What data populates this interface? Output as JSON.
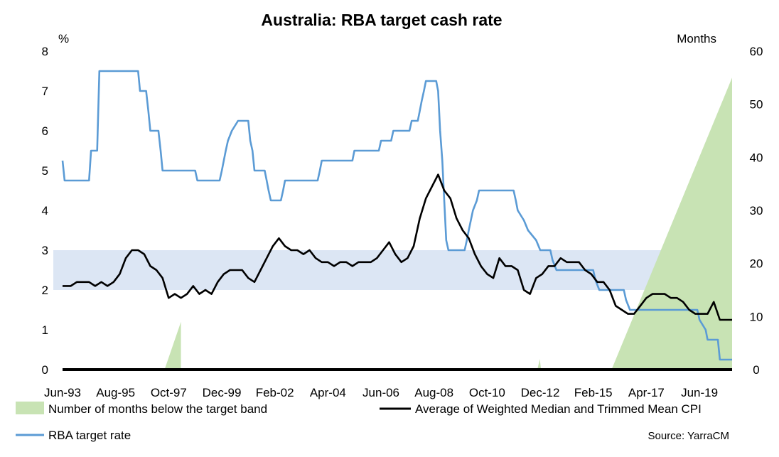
{
  "chart_data": {
    "type": "line",
    "title": "Australia: RBA target cash rate",
    "left_unit": "%",
    "right_unit": "Months",
    "source": "Source: YarraCM",
    "left_axis": {
      "min": 0,
      "max": 8,
      "ticks": [
        "0",
        "1",
        "2",
        "3",
        "4",
        "5",
        "6",
        "7",
        "8"
      ]
    },
    "right_axis": {
      "min": 0,
      "max": 60,
      "ticks": [
        "0",
        "10",
        "20",
        "30",
        "40",
        "50",
        "60"
      ]
    },
    "x_range": [
      1993.417,
      2020.75
    ],
    "x_tick_labels": [
      "Jun-93",
      "Aug-95",
      "Oct-97",
      "Dec-99",
      "Feb-02",
      "Apr-04",
      "Jun-06",
      "Aug-08",
      "Oct-10",
      "Dec-12",
      "Feb-15",
      "Apr-17",
      "Jun-19"
    ],
    "x_tick_values": [
      1993.417,
      1995.583,
      1997.75,
      1999.917,
      2002.083,
      2004.25,
      2006.417,
      2008.583,
      2010.75,
      2012.917,
      2015.083,
      2017.25,
      2019.417
    ],
    "target_band": [
      2,
      3
    ],
    "colors": {
      "band": "#dce6f4",
      "months_fill": "#c8e3b4",
      "rba": "#5b9bd5",
      "cpi": "#000000"
    },
    "legend": {
      "months": "Number of months below the target band",
      "cpi": "Average of Weighted Median and Trimmed Mean CPI",
      "rba": "RBA target rate"
    },
    "series": [
      {
        "name": "RBA target rate",
        "axis": "left",
        "points": [
          [
            1993.417,
            5.25
          ],
          [
            1993.5,
            4.75
          ],
          [
            1994.5,
            4.75
          ],
          [
            1994.58,
            5.5
          ],
          [
            1994.83,
            5.5
          ],
          [
            1994.92,
            7.5
          ],
          [
            1996.5,
            7.5
          ],
          [
            1996.58,
            7.0
          ],
          [
            1996.83,
            7.0
          ],
          [
            1996.92,
            6.5
          ],
          [
            1997.0,
            6.0
          ],
          [
            1997.33,
            6.0
          ],
          [
            1997.42,
            5.5
          ],
          [
            1997.5,
            5.0
          ],
          [
            1998.83,
            5.0
          ],
          [
            1998.92,
            4.75
          ],
          [
            1999.83,
            4.75
          ],
          [
            1999.92,
            5.0
          ],
          [
            2000.08,
            5.5
          ],
          [
            2000.17,
            5.75
          ],
          [
            2000.33,
            6.0
          ],
          [
            2000.58,
            6.25
          ],
          [
            2001.0,
            6.25
          ],
          [
            2001.08,
            5.75
          ],
          [
            2001.17,
            5.5
          ],
          [
            2001.25,
            5.0
          ],
          [
            2001.67,
            5.0
          ],
          [
            2001.75,
            4.75
          ],
          [
            2001.83,
            4.5
          ],
          [
            2001.92,
            4.25
          ],
          [
            2002.33,
            4.25
          ],
          [
            2002.42,
            4.5
          ],
          [
            2002.5,
            4.75
          ],
          [
            2003.83,
            4.75
          ],
          [
            2003.92,
            5.0
          ],
          [
            2004.0,
            5.25
          ],
          [
            2005.25,
            5.25
          ],
          [
            2005.33,
            5.5
          ],
          [
            2006.33,
            5.5
          ],
          [
            2006.42,
            5.75
          ],
          [
            2006.83,
            5.75
          ],
          [
            2006.92,
            6.0
          ],
          [
            2007.58,
            6.0
          ],
          [
            2007.67,
            6.25
          ],
          [
            2007.92,
            6.25
          ],
          [
            2008.0,
            6.5
          ],
          [
            2008.08,
            6.75
          ],
          [
            2008.17,
            7.0
          ],
          [
            2008.25,
            7.25
          ],
          [
            2008.67,
            7.25
          ],
          [
            2008.75,
            7.0
          ],
          [
            2008.83,
            6.0
          ],
          [
            2008.92,
            5.25
          ],
          [
            2009.0,
            4.25
          ],
          [
            2009.08,
            3.25
          ],
          [
            2009.17,
            3.0
          ],
          [
            2009.83,
            3.0
          ],
          [
            2009.92,
            3.25
          ],
          [
            2010.0,
            3.5
          ],
          [
            2010.17,
            4.0
          ],
          [
            2010.33,
            4.25
          ],
          [
            2010.42,
            4.5
          ],
          [
            2011.83,
            4.5
          ],
          [
            2011.92,
            4.25
          ],
          [
            2012.0,
            4.0
          ],
          [
            2012.25,
            3.75
          ],
          [
            2012.42,
            3.5
          ],
          [
            2012.75,
            3.25
          ],
          [
            2012.92,
            3.0
          ],
          [
            2013.33,
            3.0
          ],
          [
            2013.42,
            2.75
          ],
          [
            2013.58,
            2.5
          ],
          [
            2015.08,
            2.5
          ],
          [
            2015.17,
            2.25
          ],
          [
            2015.33,
            2.0
          ],
          [
            2016.33,
            2.0
          ],
          [
            2016.42,
            1.75
          ],
          [
            2016.58,
            1.5
          ],
          [
            2019.33,
            1.5
          ],
          [
            2019.42,
            1.25
          ],
          [
            2019.67,
            1.0
          ],
          [
            2019.75,
            0.75
          ],
          [
            2020.17,
            0.75
          ],
          [
            2020.25,
            0.25
          ],
          [
            2020.75,
            0.25
          ]
        ]
      },
      {
        "name": "Average of Weighted Median and Trimmed Mean CPI",
        "axis": "left",
        "points": [
          [
            1993.417,
            2.1
          ],
          [
            1993.6,
            2.1
          ],
          [
            1993.75,
            2.1
          ],
          [
            1994.0,
            2.2
          ],
          [
            1994.25,
            2.2
          ],
          [
            1994.5,
            2.2
          ],
          [
            1994.75,
            2.1
          ],
          [
            1995.0,
            2.2
          ],
          [
            1995.25,
            2.1
          ],
          [
            1995.5,
            2.2
          ],
          [
            1995.75,
            2.4
          ],
          [
            1996.0,
            2.8
          ],
          [
            1996.25,
            3.0
          ],
          [
            1996.5,
            3.0
          ],
          [
            1996.75,
            2.9
          ],
          [
            1997.0,
            2.6
          ],
          [
            1997.25,
            2.5
          ],
          [
            1997.5,
            2.3
          ],
          [
            1997.75,
            1.8
          ],
          [
            1998.0,
            1.9
          ],
          [
            1998.25,
            1.8
          ],
          [
            1998.5,
            1.9
          ],
          [
            1998.75,
            2.1
          ],
          [
            1999.0,
            1.9
          ],
          [
            1999.25,
            2.0
          ],
          [
            1999.5,
            1.9
          ],
          [
            1999.75,
            2.2
          ],
          [
            2000.0,
            2.4
          ],
          [
            2000.25,
            2.5
          ],
          [
            2000.5,
            2.5
          ],
          [
            2000.75,
            2.5
          ],
          [
            2001.0,
            2.3
          ],
          [
            2001.25,
            2.2
          ],
          [
            2001.5,
            2.5
          ],
          [
            2001.75,
            2.8
          ],
          [
            2002.0,
            3.1
          ],
          [
            2002.25,
            3.3
          ],
          [
            2002.5,
            3.1
          ],
          [
            2002.75,
            3.0
          ],
          [
            2003.0,
            3.0
          ],
          [
            2003.25,
            2.9
          ],
          [
            2003.5,
            3.0
          ],
          [
            2003.75,
            2.8
          ],
          [
            2004.0,
            2.7
          ],
          [
            2004.25,
            2.7
          ],
          [
            2004.5,
            2.6
          ],
          [
            2004.75,
            2.7
          ],
          [
            2005.0,
            2.7
          ],
          [
            2005.25,
            2.6
          ],
          [
            2005.5,
            2.7
          ],
          [
            2005.75,
            2.7
          ],
          [
            2006.0,
            2.7
          ],
          [
            2006.25,
            2.8
          ],
          [
            2006.5,
            3.0
          ],
          [
            2006.75,
            3.2
          ],
          [
            2007.0,
            2.9
          ],
          [
            2007.25,
            2.7
          ],
          [
            2007.5,
            2.8
          ],
          [
            2007.75,
            3.1
          ],
          [
            2008.0,
            3.8
          ],
          [
            2008.25,
            4.3
          ],
          [
            2008.5,
            4.6
          ],
          [
            2008.75,
            4.9
          ],
          [
            2009.0,
            4.5
          ],
          [
            2009.25,
            4.3
          ],
          [
            2009.5,
            3.8
          ],
          [
            2009.75,
            3.5
          ],
          [
            2010.0,
            3.3
          ],
          [
            2010.25,
            2.9
          ],
          [
            2010.5,
            2.6
          ],
          [
            2010.75,
            2.4
          ],
          [
            2011.0,
            2.3
          ],
          [
            2011.25,
            2.8
          ],
          [
            2011.5,
            2.6
          ],
          [
            2011.75,
            2.6
          ],
          [
            2012.0,
            2.5
          ],
          [
            2012.25,
            2.0
          ],
          [
            2012.5,
            1.9
          ],
          [
            2012.75,
            2.3
          ],
          [
            2013.0,
            2.4
          ],
          [
            2013.25,
            2.6
          ],
          [
            2013.5,
            2.6
          ],
          [
            2013.75,
            2.8
          ],
          [
            2014.0,
            2.7
          ],
          [
            2014.25,
            2.7
          ],
          [
            2014.5,
            2.7
          ],
          [
            2014.75,
            2.5
          ],
          [
            2015.0,
            2.4
          ],
          [
            2015.25,
            2.2
          ],
          [
            2015.5,
            2.2
          ],
          [
            2015.75,
            2.0
          ],
          [
            2016.0,
            1.6
          ],
          [
            2016.25,
            1.5
          ],
          [
            2016.5,
            1.4
          ],
          [
            2016.75,
            1.4
          ],
          [
            2017.0,
            1.6
          ],
          [
            2017.25,
            1.8
          ],
          [
            2017.5,
            1.9
          ],
          [
            2017.75,
            1.9
          ],
          [
            2018.0,
            1.9
          ],
          [
            2018.25,
            1.8
          ],
          [
            2018.5,
            1.8
          ],
          [
            2018.75,
            1.7
          ],
          [
            2019.0,
            1.5
          ],
          [
            2019.25,
            1.4
          ],
          [
            2019.5,
            1.4
          ],
          [
            2019.75,
            1.4
          ],
          [
            2020.0,
            1.7
          ],
          [
            2020.25,
            1.25
          ],
          [
            2020.75,
            1.25
          ]
        ]
      },
      {
        "name": "Number of months below the target band",
        "axis": "right",
        "type": "area",
        "points": [
          [
            1993.417,
            0
          ],
          [
            1997.58,
            0
          ],
          [
            1998.25,
            9
          ],
          [
            1998.25,
            0
          ],
          [
            2012.8,
            0
          ],
          [
            2012.9,
            2
          ],
          [
            2012.95,
            0
          ],
          [
            2015.83,
            0
          ],
          [
            2020.75,
            55
          ]
        ]
      }
    ]
  }
}
